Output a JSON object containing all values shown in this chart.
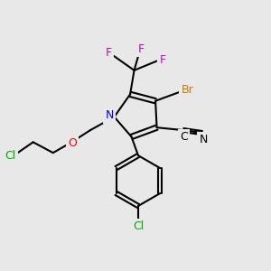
{
  "bg_color": "#e8e8e8",
  "atom_colors": {
    "F": "#cc00cc",
    "Br": "#cc7700",
    "N": "#0000ff",
    "O": "#ff0000",
    "Cl": "#00aa00",
    "C": "#000000",
    "N_nitrile": "#000000"
  },
  "bond_color": "#000000",
  "bond_width": 1.5
}
